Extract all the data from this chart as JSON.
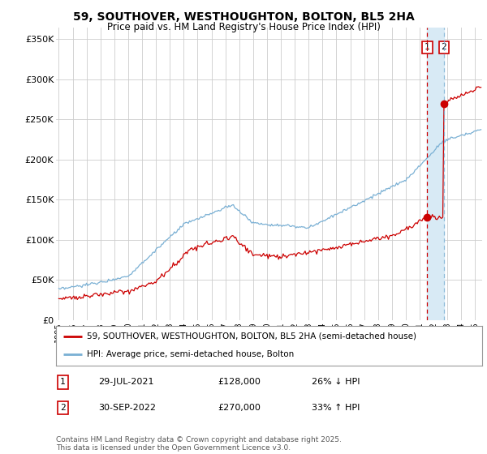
{
  "title": "59, SOUTHOVER, WESTHOUGHTON, BOLTON, BL5 2HA",
  "subtitle": "Price paid vs. HM Land Registry's House Price Index (HPI)",
  "ylabel_ticks": [
    "£0",
    "£50K",
    "£100K",
    "£150K",
    "£200K",
    "£250K",
    "£300K",
    "£350K"
  ],
  "ytick_values": [
    0,
    50000,
    100000,
    150000,
    200000,
    250000,
    300000,
    350000
  ],
  "ylim": [
    0,
    365000
  ],
  "xlim_start": 1995.0,
  "xlim_end": 2025.5,
  "red_line_color": "#cc0000",
  "blue_line_color": "#7ab0d4",
  "shade_color": "#d8eaf5",
  "marker1_date_x": 2021.55,
  "marker1_price": 128000,
  "marker2_date_x": 2022.75,
  "marker2_price": 270000,
  "legend_label1": "59, SOUTHOVER, WESTHOUGHTON, BOLTON, BL5 2HA (semi-detached house)",
  "legend_label2": "HPI: Average price, semi-detached house, Bolton",
  "table_row1": [
    "1",
    "29-JUL-2021",
    "£128,000",
    "26% ↓ HPI"
  ],
  "table_row2": [
    "2",
    "30-SEP-2022",
    "£270,000",
    "33% ↑ HPI"
  ],
  "footer": "Contains HM Land Registry data © Crown copyright and database right 2025.\nThis data is licensed under the Open Government Licence v3.0.",
  "background_color": "#ffffff",
  "grid_color": "#cccccc",
  "title_fontsize": 10,
  "subtitle_fontsize": 8.5,
  "tick_fontsize": 8,
  "legend_fontsize": 7.5,
  "table_fontsize": 8,
  "footer_fontsize": 6.5
}
